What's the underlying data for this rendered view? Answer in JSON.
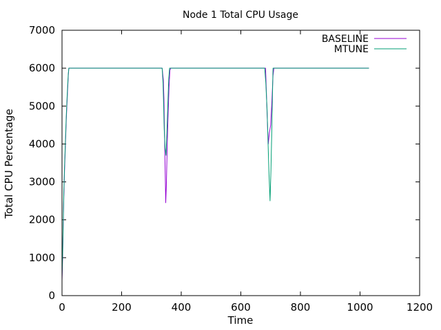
{
  "chart_data": {
    "type": "line",
    "title": "Node 1 Total CPU Usage",
    "xlabel": "Time",
    "ylabel": "Total CPU Percentage",
    "xlim": [
      0,
      1200
    ],
    "ylim": [
      0,
      7000
    ],
    "x_ticks": [
      0,
      200,
      400,
      600,
      800,
      1000,
      1200
    ],
    "y_ticks": [
      0,
      1000,
      2000,
      3000,
      4000,
      5000,
      6000,
      7000
    ],
    "grid": false,
    "legend_position": "top-right",
    "series": [
      {
        "name": "BASELINE",
        "color": "#9400d3",
        "points": [
          [
            0,
            400
          ],
          [
            2,
            1000
          ],
          [
            4,
            1800
          ],
          [
            6,
            2600
          ],
          [
            8,
            3200
          ],
          [
            11,
            3900
          ],
          [
            14,
            4600
          ],
          [
            18,
            5300
          ],
          [
            21,
            5800
          ],
          [
            23,
            6000
          ],
          [
            336,
            6000
          ],
          [
            340,
            5700
          ],
          [
            342,
            5200
          ],
          [
            345,
            3800
          ],
          [
            348,
            2450
          ],
          [
            350,
            2900
          ],
          [
            353,
            4000
          ],
          [
            356,
            4800
          ],
          [
            359,
            5500
          ],
          [
            362,
            5950
          ],
          [
            365,
            6000
          ],
          [
            683,
            6000
          ],
          [
            686,
            5300
          ],
          [
            690,
            4400
          ],
          [
            692,
            4000
          ],
          [
            696,
            4300
          ],
          [
            700,
            4500
          ],
          [
            704,
            5100
          ],
          [
            708,
            5800
          ],
          [
            711,
            6000
          ],
          [
            1030,
            6000
          ]
        ]
      },
      {
        "name": "MTUNE",
        "color": "#009e73",
        "points": [
          [
            0,
            500
          ],
          [
            2,
            1100
          ],
          [
            4,
            1900
          ],
          [
            6,
            2700
          ],
          [
            8,
            3300
          ],
          [
            11,
            4000
          ],
          [
            14,
            4700
          ],
          [
            18,
            5400
          ],
          [
            21,
            5850
          ],
          [
            23,
            6000
          ],
          [
            336,
            6000
          ],
          [
            339,
            5600
          ],
          [
            341,
            5000
          ],
          [
            343,
            4400
          ],
          [
            346,
            3900
          ],
          [
            349,
            3700
          ],
          [
            352,
            4300
          ],
          [
            355,
            5000
          ],
          [
            358,
            5700
          ],
          [
            361,
            6000
          ],
          [
            680,
            6000
          ],
          [
            684,
            5600
          ],
          [
            688,
            4900
          ],
          [
            691,
            4100
          ],
          [
            694,
            3300
          ],
          [
            698,
            2500
          ],
          [
            701,
            3300
          ],
          [
            704,
            4400
          ],
          [
            706,
            5200
          ],
          [
            708,
            6000
          ],
          [
            1030,
            6000
          ]
        ]
      }
    ]
  }
}
